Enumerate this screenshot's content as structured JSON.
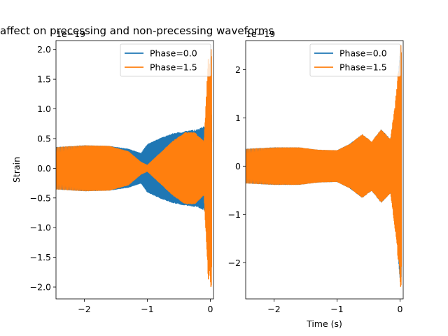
{
  "title": "affect on precessing and non-precessing waveforms",
  "colors": {
    "phase0": "#1f77b4",
    "phase15": "#ff7f0e"
  },
  "chart_data": [
    {
      "type": "line",
      "panel": "left",
      "xlabel": "",
      "ylabel": "Strain",
      "offset_text": "1e−19",
      "xlim": [
        -2.45,
        0.05
      ],
      "ylim": [
        -2.2,
        2.15
      ],
      "xticks": [
        -2,
        -1,
        0
      ],
      "xtick_labels": [
        "−2",
        "−1",
        "0"
      ],
      "yticks": [
        -2.0,
        -1.5,
        -1.0,
        -0.5,
        0.0,
        0.5,
        1.0,
        1.5,
        2.0
      ],
      "ytick_labels": [
        "−2.0",
        "−1.5",
        "−1.0",
        "−0.5",
        "0.0",
        "0.5",
        "1.0",
        "1.5",
        "2.0"
      ],
      "legend": {
        "position": "top-right",
        "entries": [
          "Phase=0.0",
          "Phase=1.5"
        ]
      },
      "series": [
        {
          "name": "Phase=0.0",
          "envelope_x": [
            -2.45,
            -2.0,
            -1.6,
            -1.3,
            -1.1,
            -1.0,
            -0.8,
            -0.6,
            -0.4,
            -0.2,
            -0.1,
            -0.03,
            0.0
          ],
          "envelope_amp": [
            0.35,
            0.38,
            0.37,
            0.32,
            0.25,
            0.4,
            0.5,
            0.58,
            0.62,
            0.65,
            0.7,
            0.85,
            0.9
          ]
        },
        {
          "name": "Phase=1.5",
          "envelope_x": [
            -2.45,
            -2.0,
            -1.6,
            -1.3,
            -1.1,
            -1.0,
            -0.8,
            -0.6,
            -0.4,
            -0.25,
            -0.1,
            -0.03,
            0.0
          ],
          "envelope_amp": [
            0.35,
            0.38,
            0.37,
            0.28,
            0.1,
            0.05,
            0.25,
            0.45,
            0.6,
            0.6,
            0.45,
            1.9,
            2.0
          ]
        }
      ]
    },
    {
      "type": "line",
      "panel": "right",
      "xlabel": "Time (s)",
      "ylabel": "",
      "offset_text": "1e−19",
      "xlim": [
        -2.45,
        0.05
      ],
      "ylim": [
        -2.75,
        2.6
      ],
      "xticks": [
        -2,
        -1,
        0
      ],
      "xtick_labels": [
        "−2",
        "−1",
        "0"
      ],
      "yticks": [
        -2,
        -1,
        0,
        1,
        2
      ],
      "ytick_labels": [
        "−2",
        "−1",
        "0",
        "1",
        "2"
      ],
      "legend": {
        "position": "top-right",
        "entries": [
          "Phase=0.0",
          "Phase=1.5"
        ]
      },
      "series": [
        {
          "name": "Phase=0.0",
          "envelope_x": [
            -2.45,
            -2.0,
            -1.6,
            -1.3,
            -1.0,
            -0.8,
            -0.6,
            -0.45,
            -0.3,
            -0.15,
            -0.05,
            0.0
          ],
          "envelope_amp": [
            0.35,
            0.38,
            0.38,
            0.33,
            0.32,
            0.45,
            0.65,
            0.5,
            0.75,
            0.55,
            1.4,
            2.35
          ]
        },
        {
          "name": "Phase=1.5",
          "envelope_x": [
            -2.45,
            -2.0,
            -1.6,
            -1.3,
            -1.0,
            -0.8,
            -0.6,
            -0.45,
            -0.3,
            -0.15,
            -0.05,
            0.0
          ],
          "envelope_amp": [
            0.35,
            0.38,
            0.38,
            0.33,
            0.32,
            0.45,
            0.65,
            0.5,
            0.75,
            0.55,
            1.6,
            2.5
          ]
        }
      ]
    }
  ]
}
